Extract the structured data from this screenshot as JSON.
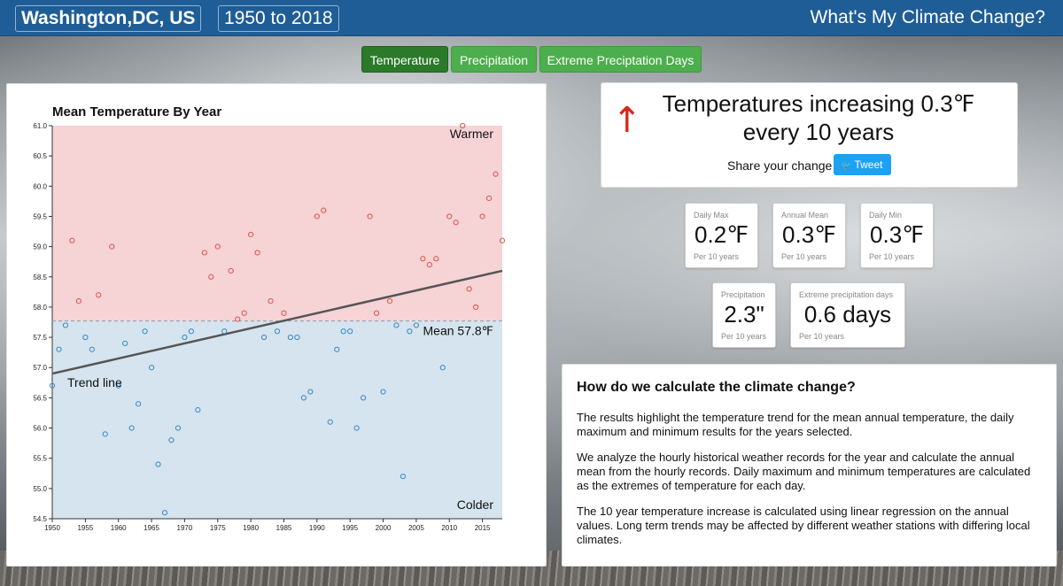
{
  "header": {
    "location": "Washington,DC, US",
    "years": "1950 to 2018",
    "app_title": "What's My Climate Change?"
  },
  "tabs": [
    {
      "label": "Temperature",
      "active": true
    },
    {
      "label": "Precipitation",
      "active": false
    },
    {
      "label": "Extreme Preciptation Days",
      "active": false
    }
  ],
  "headline": {
    "arrow": "↑",
    "line1": "Temperatures increasing 0.3℉",
    "line2": "every 10 years",
    "share_label": "Share your change",
    "tweet_label": "Tweet"
  },
  "stats": [
    {
      "label": "Daily Max",
      "value": "0.2℉",
      "sub": "Per 10 years"
    },
    {
      "label": "Annual Mean",
      "value": "0.3℉",
      "sub": "Per 10 years"
    },
    {
      "label": "Daily Min",
      "value": "0.3℉",
      "sub": "Per 10 years"
    },
    {
      "label": "Precipitation",
      "value": "2.3\"",
      "sub": "Per 10 years"
    },
    {
      "label": "Extreme precipitation days",
      "value": "0.6 days",
      "sub": "Per 10 years"
    }
  ],
  "info": {
    "heading": "How do we calculate the climate change?",
    "paragraphs": [
      "The results highlight the temperature trend for the mean annual temperature, the daily maximum and minimum results for the years selected.",
      "We analyze the hourly historical weather records for the year and calculate the annual mean from the hourly records. Daily maximum and minimum temperatures are calculated as the extremes of temperature for each day.",
      "The 10 year temperature increase is calculated using linear regression on the annual values. Long term trends may be affected by different weather stations with differing local climates."
    ]
  },
  "colors": {
    "header_bg": "#1f5d96",
    "tab_green": "#4cae4c",
    "tab_active": "#2a7a2a",
    "warm_fill": "#f6d3d5",
    "cold_fill": "#d5e4ef",
    "warm_point": "#d9534f",
    "cold_point": "#3a87c4",
    "trend": "#555555",
    "arrow": "#d9251c",
    "tweet": "#1da1f2"
  },
  "chart_data": {
    "type": "scatter",
    "title": "Mean Temperature By Year",
    "xlim": [
      1950,
      2018
    ],
    "ylim": [
      54.5,
      61.0
    ],
    "x_ticks": [
      1950,
      1955,
      1960,
      1965,
      1970,
      1975,
      1980,
      1985,
      1990,
      1995,
      2000,
      2005,
      2010,
      2015
    ],
    "y_ticks": [
      "54.5",
      "55.0",
      "55.5",
      "56.0",
      "56.5",
      "57.0",
      "57.5",
      "58.0",
      "58.5",
      "59.0",
      "59.5",
      "60.0",
      "60.5",
      "61.0"
    ],
    "mean": 57.77,
    "mean_label": "Mean 57.8℉",
    "warm_label": "Warmer",
    "cold_label": "Colder",
    "trend_label": "Trend line",
    "trend": {
      "x": [
        1950,
        2018
      ],
      "y": [
        56.9,
        58.6
      ]
    },
    "points": [
      {
        "x": 1950,
        "y": 56.7
      },
      {
        "x": 1951,
        "y": 57.3
      },
      {
        "x": 1952,
        "y": 57.7
      },
      {
        "x": 1953,
        "y": 59.1
      },
      {
        "x": 1954,
        "y": 58.1
      },
      {
        "x": 1955,
        "y": 57.5
      },
      {
        "x": 1956,
        "y": 57.3
      },
      {
        "x": 1957,
        "y": 58.2
      },
      {
        "x": 1958,
        "y": 55.9
      },
      {
        "x": 1959,
        "y": 59.0
      },
      {
        "x": 1960,
        "y": 56.7
      },
      {
        "x": 1961,
        "y": 57.4
      },
      {
        "x": 1962,
        "y": 56.0
      },
      {
        "x": 1963,
        "y": 56.4
      },
      {
        "x": 1964,
        "y": 57.6
      },
      {
        "x": 1965,
        "y": 57.0
      },
      {
        "x": 1966,
        "y": 55.4
      },
      {
        "x": 1967,
        "y": 54.6
      },
      {
        "x": 1968,
        "y": 55.8
      },
      {
        "x": 1969,
        "y": 56.0
      },
      {
        "x": 1970,
        "y": 57.5
      },
      {
        "x": 1971,
        "y": 57.6
      },
      {
        "x": 1972,
        "y": 56.3
      },
      {
        "x": 1973,
        "y": 58.9
      },
      {
        "x": 1974,
        "y": 58.5
      },
      {
        "x": 1975,
        "y": 59.0
      },
      {
        "x": 1976,
        "y": 57.6
      },
      {
        "x": 1977,
        "y": 58.6
      },
      {
        "x": 1978,
        "y": 57.8
      },
      {
        "x": 1979,
        "y": 57.9
      },
      {
        "x": 1980,
        "y": 59.2
      },
      {
        "x": 1981,
        "y": 58.9
      },
      {
        "x": 1982,
        "y": 57.5
      },
      {
        "x": 1983,
        "y": 58.1
      },
      {
        "x": 1984,
        "y": 57.6
      },
      {
        "x": 1985,
        "y": 57.9
      },
      {
        "x": 1986,
        "y": 57.5
      },
      {
        "x": 1987,
        "y": 57.5
      },
      {
        "x": 1988,
        "y": 56.5
      },
      {
        "x": 1989,
        "y": 56.6
      },
      {
        "x": 1990,
        "y": 59.5
      },
      {
        "x": 1991,
        "y": 59.6
      },
      {
        "x": 1992,
        "y": 56.1
      },
      {
        "x": 1993,
        "y": 57.3
      },
      {
        "x": 1994,
        "y": 57.6
      },
      {
        "x": 1995,
        "y": 57.6
      },
      {
        "x": 1996,
        "y": 56.0
      },
      {
        "x": 1997,
        "y": 56.5
      },
      {
        "x": 1998,
        "y": 59.5
      },
      {
        "x": 1999,
        "y": 57.9
      },
      {
        "x": 2000,
        "y": 56.6
      },
      {
        "x": 2001,
        "y": 58.1
      },
      {
        "x": 2002,
        "y": 57.7
      },
      {
        "x": 2003,
        "y": 55.2
      },
      {
        "x": 2004,
        "y": 57.6
      },
      {
        "x": 2005,
        "y": 57.7
      },
      {
        "x": 2006,
        "y": 58.8
      },
      {
        "x": 2007,
        "y": 58.7
      },
      {
        "x": 2008,
        "y": 58.8
      },
      {
        "x": 2009,
        "y": 57.0
      },
      {
        "x": 2010,
        "y": 59.5
      },
      {
        "x": 2011,
        "y": 59.4
      },
      {
        "x": 2012,
        "y": 61.0
      },
      {
        "x": 2013,
        "y": 58.3
      },
      {
        "x": 2014,
        "y": 58.0
      },
      {
        "x": 2015,
        "y": 59.5
      },
      {
        "x": 2016,
        "y": 59.8
      },
      {
        "x": 2017,
        "y": 60.2
      },
      {
        "x": 2018,
        "y": 59.1
      }
    ]
  }
}
